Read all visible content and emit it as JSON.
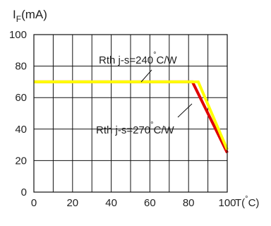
{
  "chart_data": {
    "type": "line",
    "ylabel": {
      "main": "I",
      "sub": "F",
      "unit": "(mA)"
    },
    "xlabel": {
      "main": "T(",
      "deg": "°",
      "unit": "C)"
    },
    "xlim": [
      0,
      100
    ],
    "ylim": [
      0,
      100
    ],
    "x_ticks": [
      "0",
      "20",
      "40",
      "60",
      "80",
      "100"
    ],
    "y_ticks": [
      "0",
      "20",
      "40",
      "60",
      "80",
      "100"
    ],
    "grid": true,
    "series": [
      {
        "name": "Rth j-s=240 °C/W",
        "color": "#ffff00",
        "x": [
          0,
          85,
          100
        ],
        "y": [
          70,
          70,
          27
        ]
      },
      {
        "name": "Rth j-s=270 °C/W",
        "color": "#e00000",
        "x": [
          0,
          82,
          100
        ],
        "y": [
          70,
          70,
          25
        ]
      }
    ],
    "annotations": [
      {
        "label": "Rth j-s=240",
        "deg": "°",
        "unit": "C/W"
      },
      {
        "label": "Rth j-s=270",
        "deg": "°",
        "unit": "C/W"
      }
    ]
  }
}
